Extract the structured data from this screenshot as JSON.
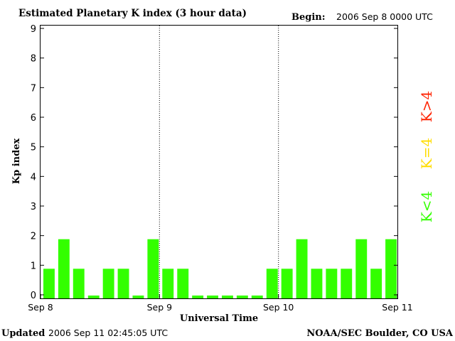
{
  "chart_data": {
    "type": "bar",
    "title": "Estimated Planetary K index (3 hour data)",
    "begin_label": "Begin:",
    "begin_value": "2006 Sep 8 0000 UTC",
    "ylabel": "Kp index",
    "xlabel": "Universal Time",
    "ylim": [
      0,
      9
    ],
    "yticks": [
      "0",
      "1",
      "2",
      "3",
      "4",
      "5",
      "6",
      "7",
      "8",
      "9"
    ],
    "x_tick_labels": [
      "Sep 8",
      "Sep 9",
      "Sep 10",
      "Sep 11"
    ],
    "values": [
      1,
      2,
      1,
      0,
      1,
      1,
      0,
      2,
      1,
      1,
      0,
      0,
      0,
      0,
      0,
      1,
      1,
      2,
      1,
      1,
      1,
      2,
      1,
      2
    ],
    "bar_color": "#33ff00",
    "day_separator_style": "dotted",
    "legend": [
      {
        "label": "K>4",
        "color": "#ff2200"
      },
      {
        "label": "K=4",
        "color": "#ffdd00"
      },
      {
        "label": "K<4",
        "color": "#33ff00"
      }
    ]
  },
  "footer": {
    "updated_label": "Updated",
    "updated_value": "2006 Sep 11 02:45:05 UTC",
    "source": "NOAA/SEC Boulder, CO USA"
  }
}
